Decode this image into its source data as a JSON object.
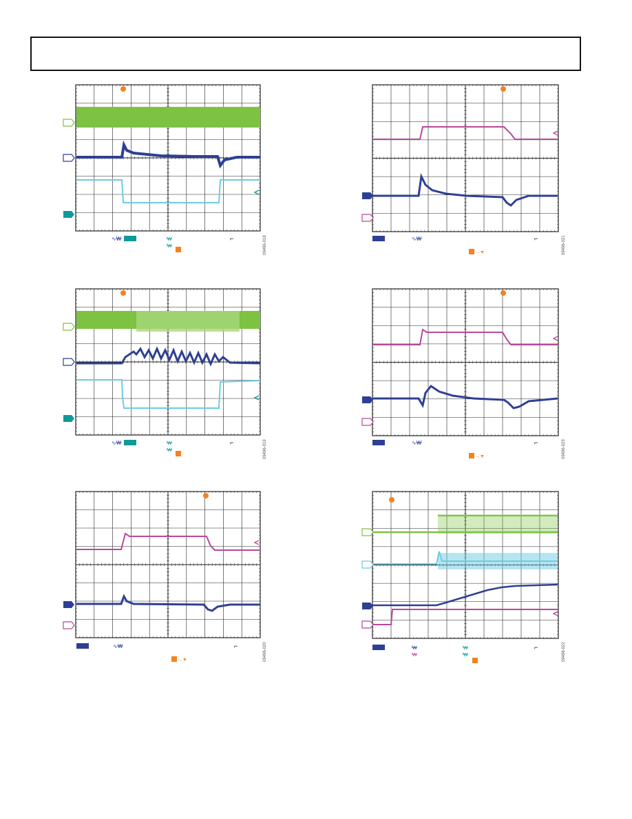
{
  "colors": {
    "green": "#7dc242",
    "blue": "#2e3f94",
    "cyan": "#6ccbe3",
    "teal": "#0e9a9a",
    "magenta": "#b8479c",
    "orange": "#f58220",
    "grid": "#222222"
  },
  "figures": [
    {
      "id": "09496-018"
    },
    {
      "id": "09496-021"
    },
    {
      "id": "09496-019"
    },
    {
      "id": "09496-023"
    },
    {
      "id": "09496-020"
    },
    {
      "id": "09496-022"
    }
  ]
}
